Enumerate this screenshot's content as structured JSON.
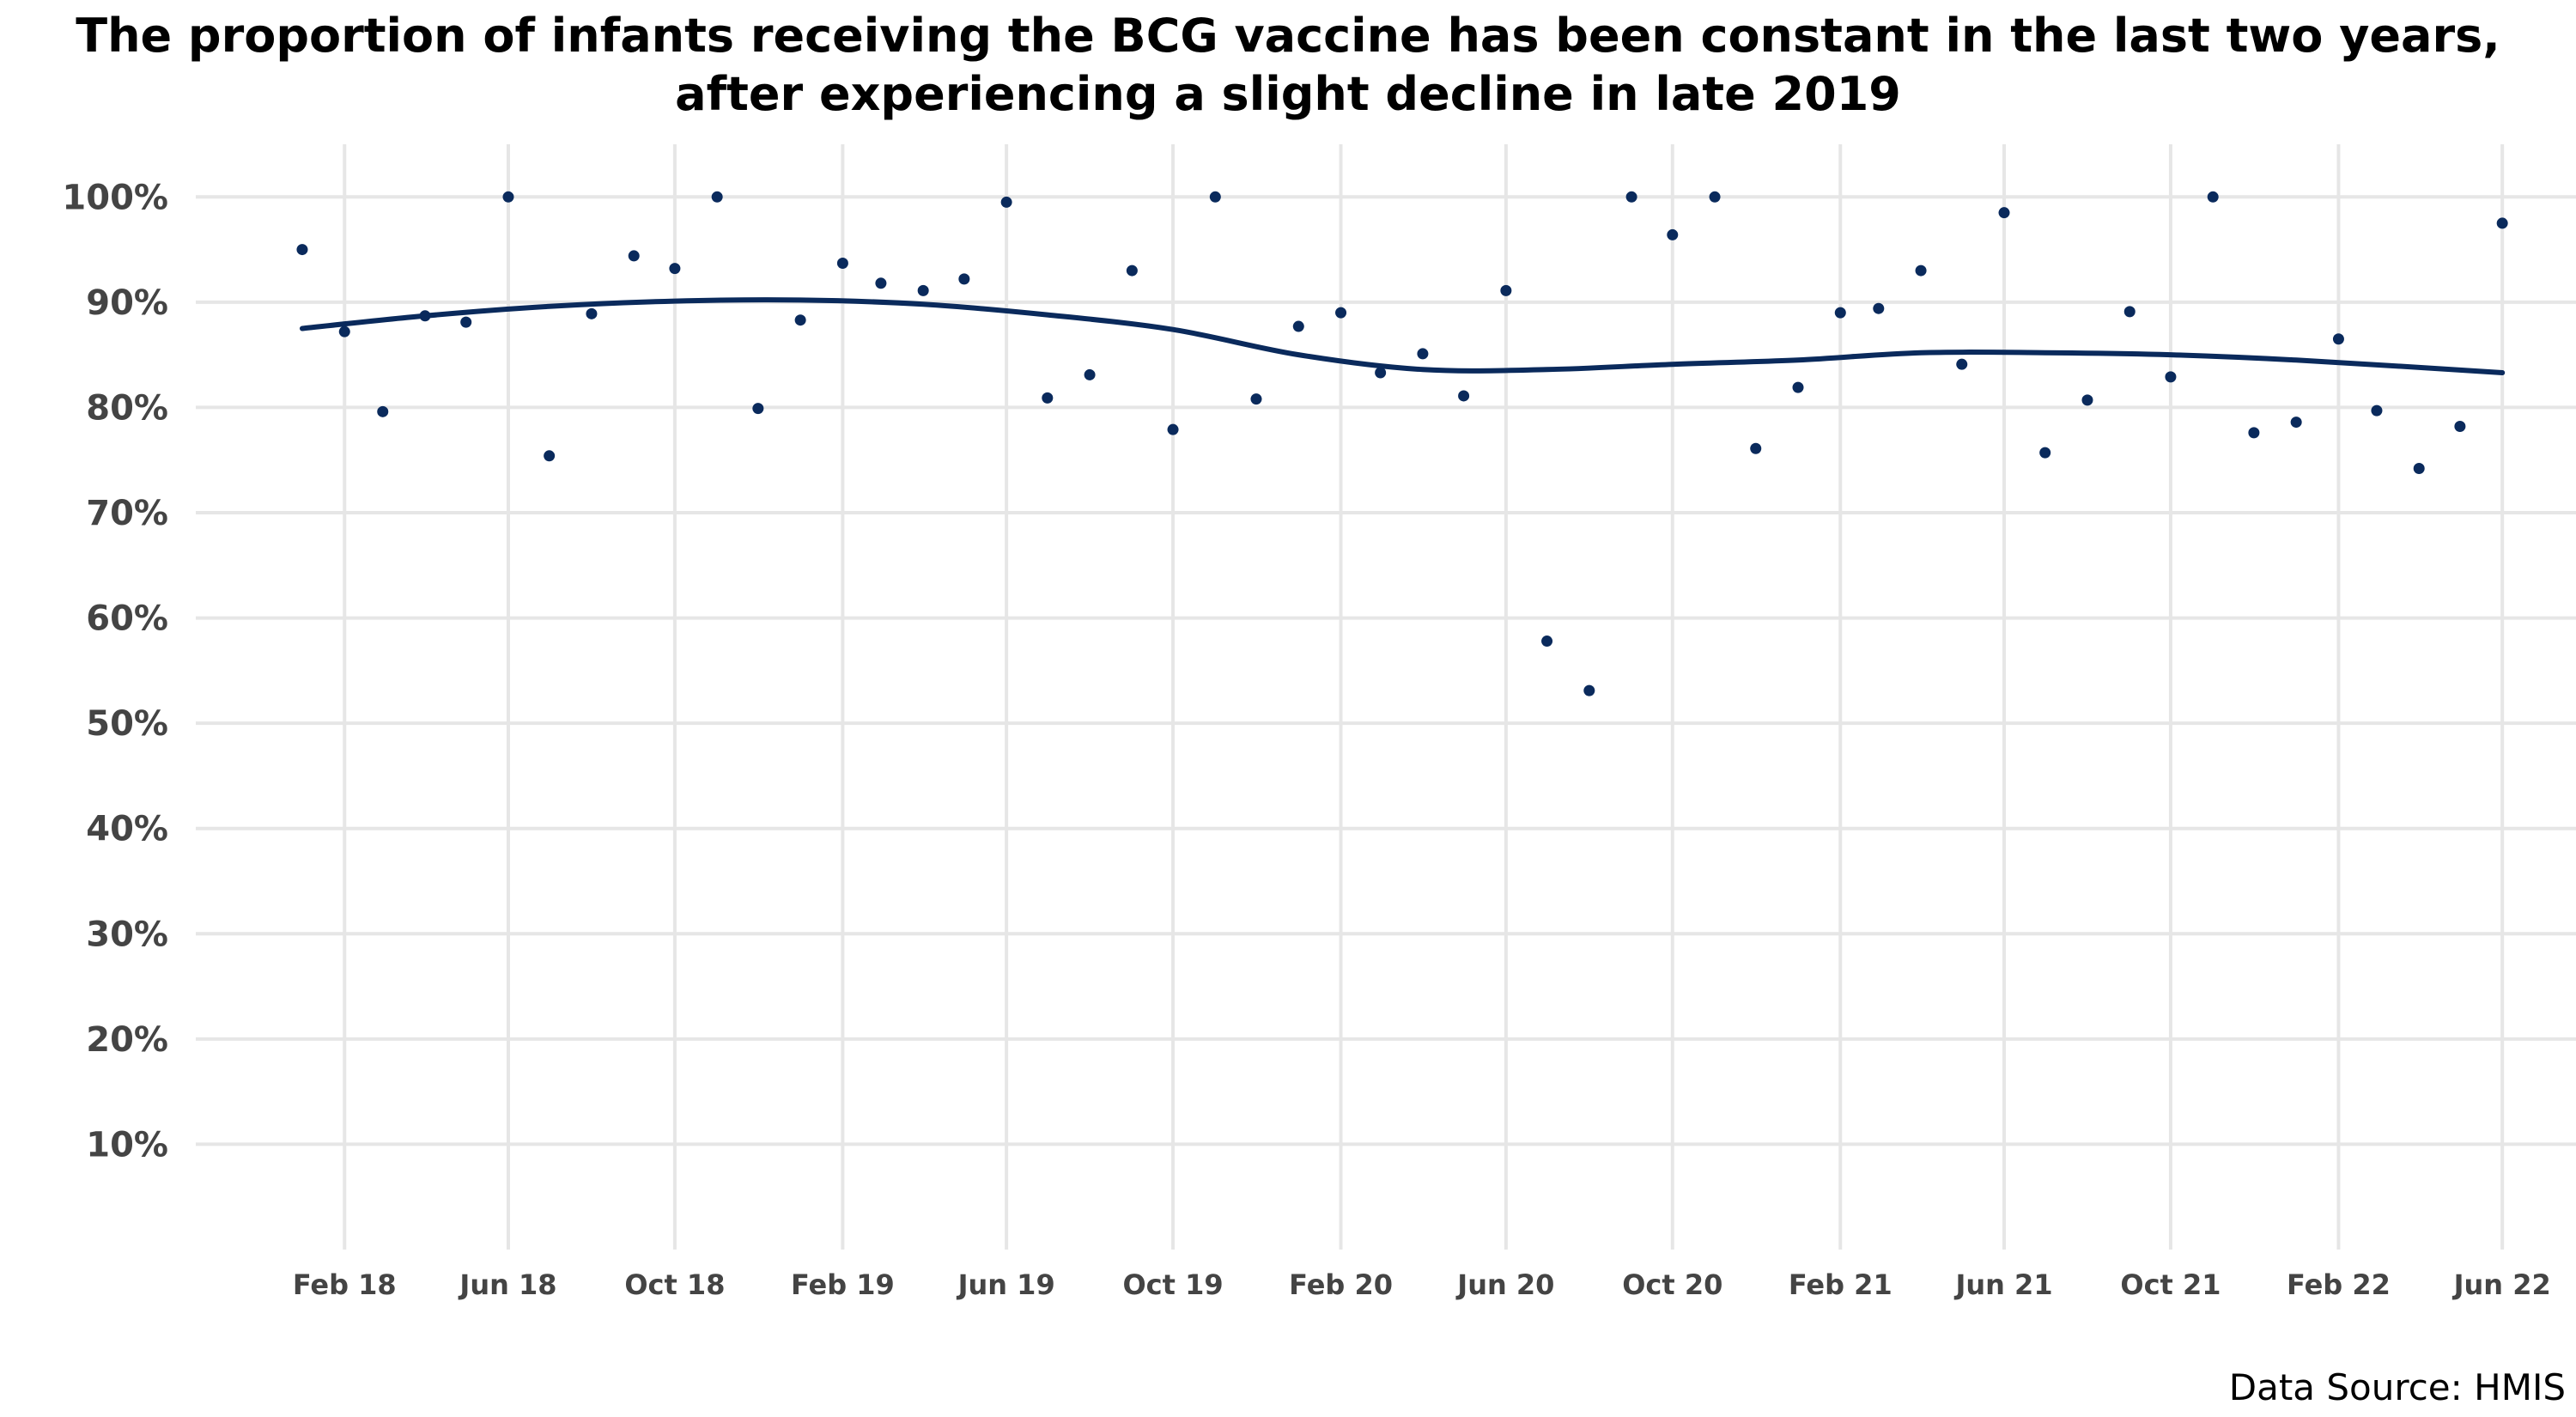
{
  "chart_data": {
    "type": "scatter",
    "title_lines": [
      "The proportion of infants receiving the BCG vaccine has been constant in the last two years,",
      "after experiencing a slight decline in late 2019"
    ],
    "source": "Data Source: HMIS",
    "xlabel": "",
    "ylabel": "",
    "ylim": [
      0,
      105
    ],
    "xlim": [
      "2017-10-15",
      "2022-07-25"
    ],
    "grid": true,
    "legend": "none",
    "y_ticks": [
      10,
      20,
      30,
      40,
      50,
      60,
      70,
      80,
      90,
      100
    ],
    "y_tick_labels": [
      "10%",
      "20%",
      "30%",
      "40%",
      "50%",
      "60%",
      "70%",
      "80%",
      "90%",
      "100%"
    ],
    "x_ticks": [
      "2018-02-01",
      "2018-06-01",
      "2018-10-01",
      "2019-02-01",
      "2019-06-01",
      "2019-10-01",
      "2020-02-01",
      "2020-06-01",
      "2020-10-01",
      "2021-02-01",
      "2021-06-01",
      "2021-10-01",
      "2022-02-01",
      "2022-06-01"
    ],
    "x_tick_labels": [
      "Feb 18",
      "Jun 18",
      "Oct 18",
      "Feb 19",
      "Jun 19",
      "Oct 19",
      "Feb 20",
      "Jun 20",
      "Oct 20",
      "Feb 21",
      "Jun 21",
      "Oct 21",
      "Feb 22",
      "Jun 22"
    ],
    "colors": {
      "points": "#0a2a5c",
      "trend": "#0a2a5c",
      "grid": "#e6e6e6"
    },
    "points": [
      {
        "x": "2018-01-01",
        "y": 95.0
      },
      {
        "x": "2018-02-01",
        "y": 87.2
      },
      {
        "x": "2018-03-01",
        "y": 79.6
      },
      {
        "x": "2018-04-01",
        "y": 88.7
      },
      {
        "x": "2018-05-01",
        "y": 88.1
      },
      {
        "x": "2018-06-01",
        "y": 100.0
      },
      {
        "x": "2018-07-01",
        "y": 75.4
      },
      {
        "x": "2018-08-01",
        "y": 88.9
      },
      {
        "x": "2018-09-01",
        "y": 94.4
      },
      {
        "x": "2018-10-01",
        "y": 93.2
      },
      {
        "x": "2018-11-01",
        "y": 100.0
      },
      {
        "x": "2018-12-01",
        "y": 79.9
      },
      {
        "x": "2019-01-01",
        "y": 88.3
      },
      {
        "x": "2019-02-01",
        "y": 93.7
      },
      {
        "x": "2019-03-01",
        "y": 91.8
      },
      {
        "x": "2019-04-01",
        "y": 91.1
      },
      {
        "x": "2019-05-01",
        "y": 92.2
      },
      {
        "x": "2019-06-01",
        "y": 99.5
      },
      {
        "x": "2019-07-01",
        "y": 80.9
      },
      {
        "x": "2019-08-01",
        "y": 83.1
      },
      {
        "x": "2019-09-01",
        "y": 93.0
      },
      {
        "x": "2019-10-01",
        "y": 77.9
      },
      {
        "x": "2019-11-01",
        "y": 100.0
      },
      {
        "x": "2019-12-01",
        "y": 80.8
      },
      {
        "x": "2020-01-01",
        "y": 87.7
      },
      {
        "x": "2020-02-01",
        "y": 89.0
      },
      {
        "x": "2020-03-01",
        "y": 83.3
      },
      {
        "x": "2020-04-01",
        "y": 85.1
      },
      {
        "x": "2020-05-01",
        "y": 81.1
      },
      {
        "x": "2020-06-01",
        "y": 91.1
      },
      {
        "x": "2020-07-01",
        "y": 57.8
      },
      {
        "x": "2020-08-01",
        "y": 53.1
      },
      {
        "x": "2020-09-01",
        "y": 100.0
      },
      {
        "x": "2020-10-01",
        "y": 96.4
      },
      {
        "x": "2020-11-01",
        "y": 100.0
      },
      {
        "x": "2020-12-01",
        "y": 76.1
      },
      {
        "x": "2021-01-01",
        "y": 81.9
      },
      {
        "x": "2021-02-01",
        "y": 89.0
      },
      {
        "x": "2021-03-01",
        "y": 89.4
      },
      {
        "x": "2021-04-01",
        "y": 93.0
      },
      {
        "x": "2021-05-01",
        "y": 84.1
      },
      {
        "x": "2021-06-01",
        "y": 98.5
      },
      {
        "x": "2021-07-01",
        "y": 75.7
      },
      {
        "x": "2021-08-01",
        "y": 80.7
      },
      {
        "x": "2021-09-01",
        "y": 89.1
      },
      {
        "x": "2021-10-01",
        "y": 82.9
      },
      {
        "x": "2021-11-01",
        "y": 100.0
      },
      {
        "x": "2021-12-01",
        "y": 77.6
      },
      {
        "x": "2022-01-01",
        "y": 78.6
      },
      {
        "x": "2022-02-01",
        "y": 86.5
      },
      {
        "x": "2022-03-01",
        "y": 79.7
      },
      {
        "x": "2022-04-01",
        "y": 74.2
      },
      {
        "x": "2022-05-01",
        "y": 78.2
      },
      {
        "x": "2022-06-01",
        "y": 97.5
      }
    ],
    "trend": {
      "type": "smooth",
      "points": [
        {
          "x": "2018-01-01",
          "y": 87.5
        },
        {
          "x": "2018-04-01",
          "y": 88.7
        },
        {
          "x": "2018-07-01",
          "y": 89.6
        },
        {
          "x": "2018-10-01",
          "y": 90.1
        },
        {
          "x": "2019-01-01",
          "y": 90.2
        },
        {
          "x": "2019-04-01",
          "y": 89.8
        },
        {
          "x": "2019-07-01",
          "y": 88.8
        },
        {
          "x": "2019-10-01",
          "y": 87.4
        },
        {
          "x": "2020-01-01",
          "y": 85.0
        },
        {
          "x": "2020-04-01",
          "y": 83.6
        },
        {
          "x": "2020-07-01",
          "y": 83.6
        },
        {
          "x": "2020-10-01",
          "y": 84.1
        },
        {
          "x": "2021-01-01",
          "y": 84.5
        },
        {
          "x": "2021-04-01",
          "y": 85.2
        },
        {
          "x": "2021-07-01",
          "y": 85.2
        },
        {
          "x": "2021-10-01",
          "y": 85.0
        },
        {
          "x": "2022-01-01",
          "y": 84.5
        },
        {
          "x": "2022-06-01",
          "y": 83.3
        }
      ]
    }
  }
}
